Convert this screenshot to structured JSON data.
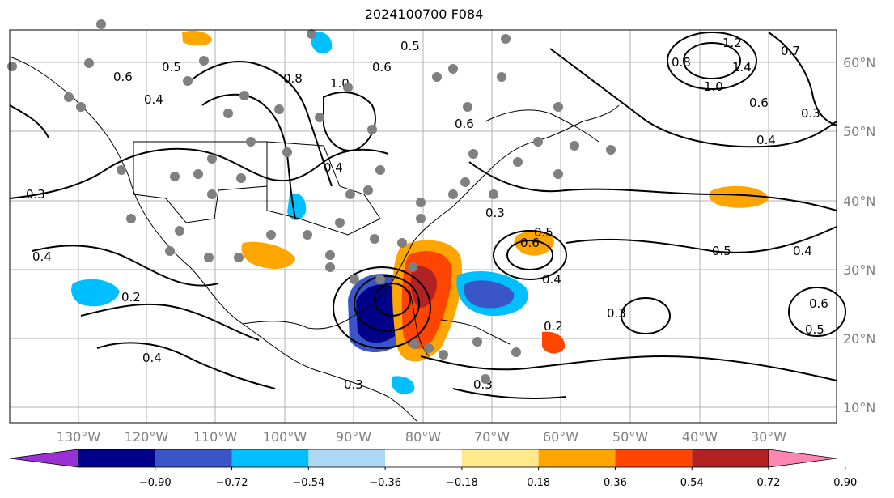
{
  "title": "2024100700 F084",
  "lon_ticks": [
    "130°W",
    "120°W",
    "110°W",
    "100°W",
    "90°W",
    "80°W",
    "70°W",
    "60°W",
    "50°W",
    "40°W",
    "30°W"
  ],
  "lat_ticks": [
    "60°N",
    "50°N",
    "40°N",
    "30°N",
    "20°N",
    "10°N"
  ],
  "colorbar": {
    "ticks": [
      "−0.90",
      "−0.72",
      "−0.54",
      "−0.36",
      "−0.18",
      "0.18",
      "0.36",
      "0.54",
      "0.72",
      "0.90"
    ],
    "colors": [
      "#9b30d9",
      "#00008b",
      "#3a55c8",
      "#00bfff",
      "#add8f5",
      "#ffffff",
      "#ffe98a",
      "#ffa500",
      "#ff4500",
      "#b22222",
      "#ff85b3"
    ]
  },
  "contour_labels": [
    "0.4",
    "0.3",
    "0.2",
    "0.4",
    "0.6",
    "0.5",
    "0.4",
    "0.8",
    "0.6",
    "1.0",
    "0.5",
    "0.6",
    "0.4",
    "0.3",
    "0.5",
    "0.4",
    "0.6",
    "0.3",
    "0.5",
    "1.2",
    "1.4",
    "1.0",
    "0.6",
    "0.4",
    "0.3",
    "0.8",
    "0.7",
    "0.4",
    "0.2",
    "0.3",
    "0.6",
    "0.5",
    "0.3"
  ]
}
